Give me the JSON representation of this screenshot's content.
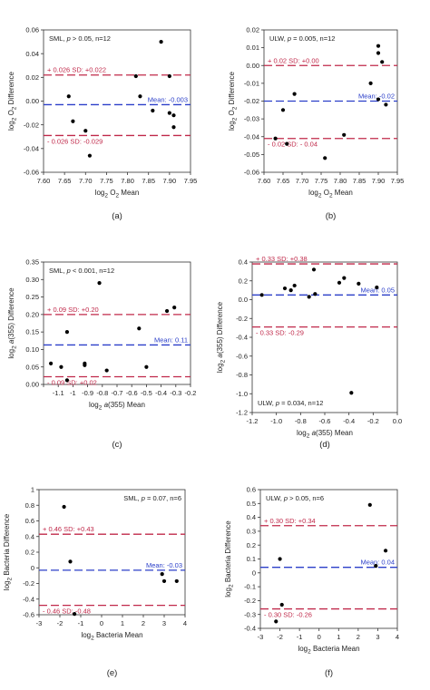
{
  "colors": {
    "upper": "#c0294a",
    "lower": "#c0294a",
    "mean": "#2b3fc9",
    "point": "#000000",
    "axis": "#333333"
  },
  "chart_data": [
    {
      "type": "scatter",
      "panel_label": "(a)",
      "annotation": "SML, p > 0.05, n=12",
      "xlabel": "log2 O2 Mean",
      "ylabel": "log2 O2 Difference",
      "xlim": [
        7.6,
        7.95
      ],
      "ylim": [
        -0.06,
        0.06
      ],
      "xticks": [
        7.6,
        7.65,
        7.7,
        7.75,
        7.8,
        7.85,
        7.9,
        7.95
      ],
      "xtick_labels": [
        "7.60",
        "7.65",
        "7.70",
        "7.75",
        "7.80",
        "7.85",
        "7.90",
        "7.95"
      ],
      "yticks": [
        -0.06,
        -0.04,
        -0.02,
        0,
        0.02,
        0.04,
        0.06
      ],
      "ytick_labels": [
        "-0.06",
        "-0.04",
        "-0.02",
        "0.00",
        "0.02",
        "0.04",
        "0.06"
      ],
      "upper_line": {
        "value": 0.022,
        "label": "+ 0.026 SD: +0.022"
      },
      "mean_line": {
        "value": -0.003,
        "label": "Mean: -0.003"
      },
      "lower_line": {
        "value": -0.029,
        "label": "- 0.026 SD: -0.029"
      },
      "points": [
        [
          7.66,
          0.004
        ],
        [
          7.67,
          -0.017
        ],
        [
          7.7,
          -0.025
        ],
        [
          7.71,
          -0.046
        ],
        [
          7.82,
          0.021
        ],
        [
          7.83,
          0.004
        ],
        [
          7.86,
          -0.008
        ],
        [
          7.88,
          0.05
        ],
        [
          7.9,
          0.021
        ],
        [
          7.9,
          -0.01
        ],
        [
          7.91,
          -0.012
        ],
        [
          7.91,
          -0.022
        ]
      ]
    },
    {
      "type": "scatter",
      "panel_label": "(b)",
      "annotation": "ULW, p = 0.005, n=12",
      "xlabel": "log2 O2 Mean",
      "ylabel": "log2 O2 Difference",
      "xlim": [
        7.6,
        7.95
      ],
      "ylim": [
        -0.06,
        0.02
      ],
      "xticks": [
        7.6,
        7.65,
        7.7,
        7.75,
        7.8,
        7.85,
        7.9,
        7.95
      ],
      "xtick_labels": [
        "7.60",
        "7.65",
        "7.70",
        "7.75",
        "7.80",
        "7.85",
        "7.90",
        "7.95"
      ],
      "yticks": [
        -0.06,
        -0.05,
        -0.04,
        -0.03,
        -0.02,
        -0.01,
        0,
        0.01,
        0.02
      ],
      "ytick_labels": [
        "-0.06",
        "-0.05",
        "-0.04",
        "-0.03",
        "-0.02",
        "-0.01",
        "0.00",
        "0.01",
        "0.02"
      ],
      "upper_line": {
        "value": 0.0,
        "label": "+ 0.02 SD: +0.00"
      },
      "mean_line": {
        "value": -0.02,
        "label": "Mean: -0.02"
      },
      "lower_line": {
        "value": -0.041,
        "label": "- 0.02 SD: - 0.04"
      },
      "points": [
        [
          7.63,
          -0.041
        ],
        [
          7.65,
          -0.025
        ],
        [
          7.66,
          -0.044
        ],
        [
          7.68,
          -0.016
        ],
        [
          7.76,
          -0.052
        ],
        [
          7.81,
          -0.039
        ],
        [
          7.88,
          -0.01
        ],
        [
          7.9,
          -0.019
        ],
        [
          7.9,
          0.011
        ],
        [
          7.9,
          0.007
        ],
        [
          7.91,
          0.002
        ],
        [
          7.92,
          -0.022
        ]
      ]
    },
    {
      "type": "scatter",
      "panel_label": "(c)",
      "annotation": "SML, p < 0.001, n=12",
      "xlabel": "log2 a(355) Mean",
      "ylabel": "log2 a(355) Difference",
      "xlim": [
        -1.2,
        -0.2
      ],
      "ylim": [
        0,
        0.35
      ],
      "xticks": [
        -1.2,
        -1.1,
        -1.0,
        -0.9,
        -0.8,
        -0.7,
        -0.6,
        -0.5,
        -0.4,
        -0.3,
        -0.2
      ],
      "xtick_labels": [
        "",
        "-1.1",
        "-1",
        "-0.9",
        "-0.8",
        "-0.7",
        "-0.6",
        "-0.5",
        "-0.4",
        "-0.3",
        "-0.2"
      ],
      "yticks": [
        0,
        0.05,
        0.1,
        0.15,
        0.2,
        0.25,
        0.3,
        0.35
      ],
      "ytick_labels": [
        "0.00",
        "0.05",
        "0.10",
        "0.15",
        "0.20",
        "0.25",
        "0.30",
        "0.35"
      ],
      "upper_line": {
        "value": 0.2,
        "label": "+ 0.09 SD: +0.20"
      },
      "mean_line": {
        "value": 0.113,
        "label": "Mean: 0.11"
      },
      "lower_line": {
        "value": 0.022,
        "label": "- 0.09 SD: +0.02"
      },
      "points": [
        [
          -1.15,
          0.06
        ],
        [
          -1.08,
          0.05
        ],
        [
          -1.04,
          0.15
        ],
        [
          -1.04,
          0.012
        ],
        [
          -0.92,
          0.055
        ],
        [
          -0.92,
          0.06
        ],
        [
          -0.82,
          0.29
        ],
        [
          -0.77,
          0.04
        ],
        [
          -0.55,
          0.16
        ],
        [
          -0.5,
          0.05
        ],
        [
          -0.36,
          0.21
        ],
        [
          -0.31,
          0.22
        ]
      ]
    },
    {
      "type": "scatter",
      "panel_label": "(d)",
      "annotation": "ULW, p = 0.034, n=12",
      "xlabel": "log2 a(355) Mean",
      "ylabel": "log2 a(355) Difference",
      "xlim": [
        -1.2,
        0
      ],
      "ylim": [
        -1.2,
        0.4
      ],
      "xticks": [
        -1.2,
        -1.0,
        -0.8,
        -0.6,
        -0.4,
        -0.2,
        0
      ],
      "xtick_labels": [
        "-1.2",
        "-1.0",
        "-0.8",
        "-0.6",
        "-0.4",
        "-0.2",
        "0.0"
      ],
      "yticks": [
        -1.2,
        -1.0,
        -0.8,
        -0.6,
        -0.4,
        -0.2,
        0,
        0.2,
        0.4
      ],
      "ytick_labels": [
        "-1.2",
        "-1.0",
        "-0.8",
        "-0.6",
        "-0.4",
        "-0.2",
        "0.0",
        "0.2",
        "0.4"
      ],
      "upper_line": {
        "value": 0.38,
        "label": "+ 0.33 SD: +0.38"
      },
      "mean_line": {
        "value": 0.05,
        "label": "Mean: 0.05"
      },
      "lower_line": {
        "value": -0.29,
        "label": "- 0.33 SD: -0.29"
      },
      "points": [
        [
          -1.12,
          0.05
        ],
        [
          -0.93,
          0.12
        ],
        [
          -0.88,
          0.1
        ],
        [
          -0.85,
          0.15
        ],
        [
          -0.73,
          0.03
        ],
        [
          -0.69,
          0.32
        ],
        [
          -0.68,
          0.06
        ],
        [
          -0.48,
          0.18
        ],
        [
          -0.44,
          0.23
        ],
        [
          -0.38,
          -0.99
        ],
        [
          -0.32,
          0.17
        ],
        [
          -0.17,
          0.13
        ]
      ]
    },
    {
      "type": "scatter",
      "panel_label": "(e)",
      "annotation": "SML, p = 0.07, n=6",
      "xlabel": "log2 Bacteria Mean",
      "ylabel": "log2 Bacteria Difference",
      "xlim": [
        -3,
        4
      ],
      "ylim": [
        -0.6,
        1.0
      ],
      "xticks": [
        -3,
        -2,
        -1,
        0,
        1,
        2,
        3,
        4
      ],
      "xtick_labels": [
        "-3",
        "-2",
        "-1",
        "0",
        "1",
        "2",
        "3",
        "4"
      ],
      "yticks": [
        -0.6,
        -0.4,
        -0.2,
        0,
        0.2,
        0.4,
        0.6,
        0.8,
        1.0
      ],
      "ytick_labels": [
        "-0.6",
        "-0.4",
        "-0.2",
        "0",
        "0.2",
        "0.4",
        "0.6",
        "0.8",
        "1"
      ],
      "upper_line": {
        "value": 0.43,
        "label": "+ 0.46 SD: +0.43"
      },
      "mean_line": {
        "value": -0.03,
        "label": "Mean: -0.03"
      },
      "lower_line": {
        "value": -0.48,
        "label": "- 0.46 SD: -0.48"
      },
      "points": [
        [
          -1.8,
          0.78
        ],
        [
          -1.5,
          0.08
        ],
        [
          -1.3,
          -0.59
        ],
        [
          2.9,
          -0.08
        ],
        [
          3.0,
          -0.17
        ],
        [
          3.6,
          -0.17
        ]
      ]
    },
    {
      "type": "scatter",
      "panel_label": "(f)",
      "annotation": "ULW, p > 0.05, n=6",
      "xlabel": "log2 Bacteria Mean",
      "ylabel": "log2 Bacteria Difference",
      "xlim": [
        -3,
        4
      ],
      "ylim": [
        -0.4,
        0.6
      ],
      "xticks": [
        -3,
        -2,
        -1,
        0,
        1,
        2,
        3,
        4
      ],
      "xtick_labels": [
        "-3",
        "-2",
        "-1",
        "0",
        "1",
        "2",
        "3",
        "4"
      ],
      "yticks": [
        -0.4,
        -0.3,
        -0.2,
        -0.1,
        0,
        0.1,
        0.2,
        0.3,
        0.4,
        0.5,
        0.6
      ],
      "ytick_labels": [
        "-0.4",
        "-0.3",
        "-0.2",
        "-0.1",
        "0",
        "0.1",
        "0.2",
        "0.3",
        "0.4",
        "0.5",
        "0.6"
      ],
      "upper_line": {
        "value": 0.34,
        "label": "+ 0.30 SD: +0.34"
      },
      "mean_line": {
        "value": 0.04,
        "label": "Mean: 0.04"
      },
      "lower_line": {
        "value": -0.26,
        "label": "- 0.30 SD: -0.26"
      },
      "points": [
        [
          -2.2,
          -0.35
        ],
        [
          -2.0,
          0.1
        ],
        [
          -1.9,
          -0.23
        ],
        [
          2.6,
          0.49
        ],
        [
          2.9,
          0.05
        ],
        [
          3.4,
          0.16
        ]
      ]
    }
  ]
}
